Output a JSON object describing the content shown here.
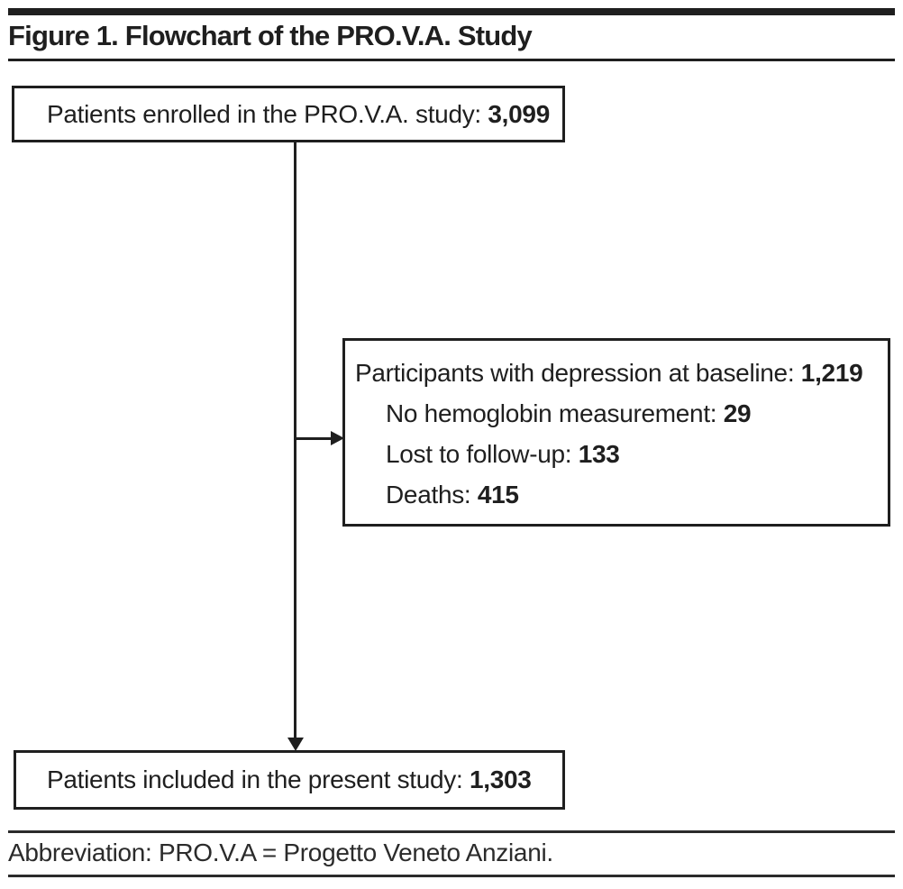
{
  "figure": {
    "title": "Figure 1. Flowchart of the PRO.V.A. Study",
    "footnote": "Abbreviation: PRO.V.A = Progetto Veneto Anziani."
  },
  "flowchart": {
    "enrolled": {
      "label": "Patients enrolled in the PRO.V.A. study:",
      "value": "3,099"
    },
    "depression": {
      "label": "Participants with depression at baseline:",
      "value": "1,219",
      "exclusions": [
        {
          "label": "No hemoglobin measurement:",
          "value": "29"
        },
        {
          "label": "Lost to follow-up:",
          "value": "133"
        },
        {
          "label": "Deaths:",
          "value": "415"
        }
      ]
    },
    "included": {
      "label": "Patients included in the present study:",
      "value": "1,303"
    }
  },
  "colors": {
    "ink": "#1f1f1f",
    "background": "#ffffff"
  }
}
